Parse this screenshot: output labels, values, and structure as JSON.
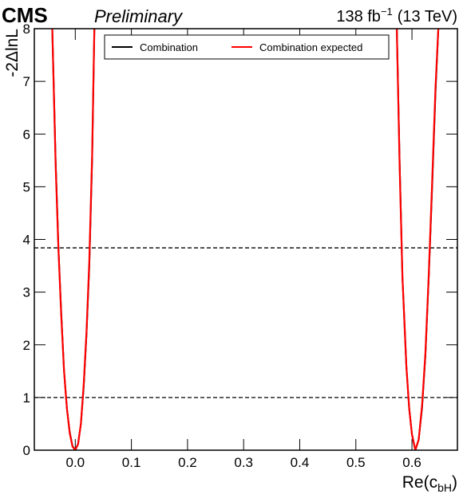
{
  "chart_data": {
    "type": "line",
    "experiment": "CMS",
    "status": "Preliminary",
    "lumi": "138 fb",
    "lumi_sup": "−1",
    "energy": "(13 TeV)",
    "xlabel": {
      "main": "Re(c",
      "sub": "bH",
      "close": ")"
    },
    "ylabel": "-2ΔlnL",
    "x": [
      -0.041,
      -0.035,
      -0.03,
      -0.025,
      -0.02,
      -0.015,
      -0.01,
      -0.005,
      0.0,
      0.005,
      0.01,
      0.015,
      0.02,
      0.025,
      0.03,
      0.034,
      null,
      0.573,
      0.578,
      0.583,
      0.59,
      0.595,
      0.6,
      0.606,
      0.612,
      0.618,
      0.624,
      0.63,
      0.636,
      0.642,
      0.647
    ],
    "series": [
      {
        "name": "Combination",
        "color": "#000000",
        "values": [
          8,
          5.5,
          3.84,
          2.6,
          1.5,
          0.8,
          0.35,
          0.08,
          0,
          0.12,
          0.5,
          1.2,
          2.2,
          3.5,
          5.5,
          8,
          null,
          8,
          5.5,
          3.3,
          1.6,
          0.8,
          0.3,
          0,
          0.2,
          0.8,
          1.8,
          3.3,
          5.0,
          6.8,
          8
        ]
      },
      {
        "name": "Combination expected",
        "color": "#ff0000",
        "values": [
          8,
          5.4,
          3.8,
          2.55,
          1.5,
          0.8,
          0.33,
          0.07,
          0,
          0.12,
          0.5,
          1.25,
          2.25,
          3.6,
          5.6,
          8,
          null,
          8,
          5.4,
          3.3,
          1.6,
          0.8,
          0.3,
          0,
          0.2,
          0.85,
          1.85,
          3.35,
          5.1,
          6.9,
          8
        ]
      }
    ],
    "hlines": [
      1,
      3.84
    ],
    "xlim": [
      -0.073,
      0.681
    ],
    "ylim": [
      0,
      8
    ],
    "xticks": [
      {
        "value": 0,
        "label": "0.0"
      },
      0.1,
      0.2,
      0.3,
      0.4,
      0.5,
      0.6
    ],
    "yticks": [
      0,
      1,
      2,
      3,
      4,
      5,
      6,
      7,
      8
    ],
    "legend": "top"
  }
}
